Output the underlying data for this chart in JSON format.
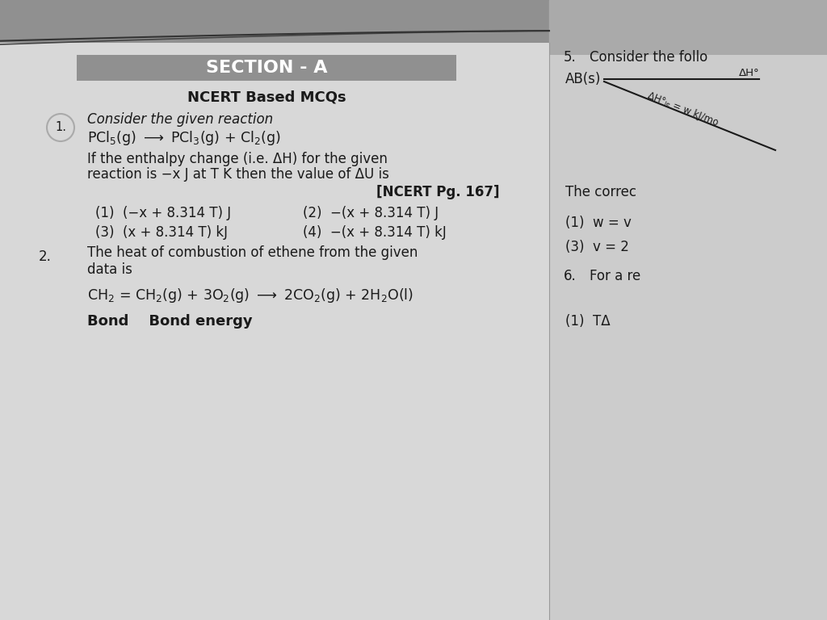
{
  "bg_color": "#b0b0b0",
  "page_left_color": "#d8d8d8",
  "page_right_color": "#cccccc",
  "banner_color": "#909090",
  "title": "SECTION - A",
  "subtitle": "NCERT Based MCQs",
  "q1_intro": "Consider the given reaction",
  "q1_reaction": "PCl$_5$(g) $\\longrightarrow$ PCl$_3$(g) + Cl$_2$(g)",
  "q1_body1": "If the enthalpy change (i.e. ΔH) for the given",
  "q1_body2": "reaction is −x J at T K then the value of ΔU is",
  "q1_ref": "[NCERT Pg. 167]",
  "q1_opt1": "(1)  (−x + 8.314 T) J",
  "q1_opt2": "(2)  −(x + 8.314 T) J",
  "q1_opt3": "(3)  (x + 8.314 T) kJ",
  "q1_opt4": "(4)  −(x + 8.314 T) kJ",
  "q2_text1": "The heat of combustion of ethene from the given",
  "q2_text2": "data is",
  "q2_reaction": "CH$_2$ = CH$_2$(g) + 3O$_2$(g) $\\longrightarrow$ 2CO$_2$(g) + 2H$_2$O(l)",
  "q2_footer": "Bond    Bond energy",
  "r_q5": "5.",
  "r_q5_text": "Consider the follo",
  "r_ab": "AB(s)",
  "r_dh": "ΔH°",
  "r_dhle": "ΔH°ₗₑ = w kJ/mo",
  "r_correct": "The correc",
  "r_opt1": "(1)  w = v",
  "r_opt3": "(3)  v = 2",
  "r_q6": "6.",
  "r_q6_text": "For a re",
  "r_opt1b": "(1)  TΔ",
  "text_color": "#1a1a1a",
  "dark_text": "#111111"
}
